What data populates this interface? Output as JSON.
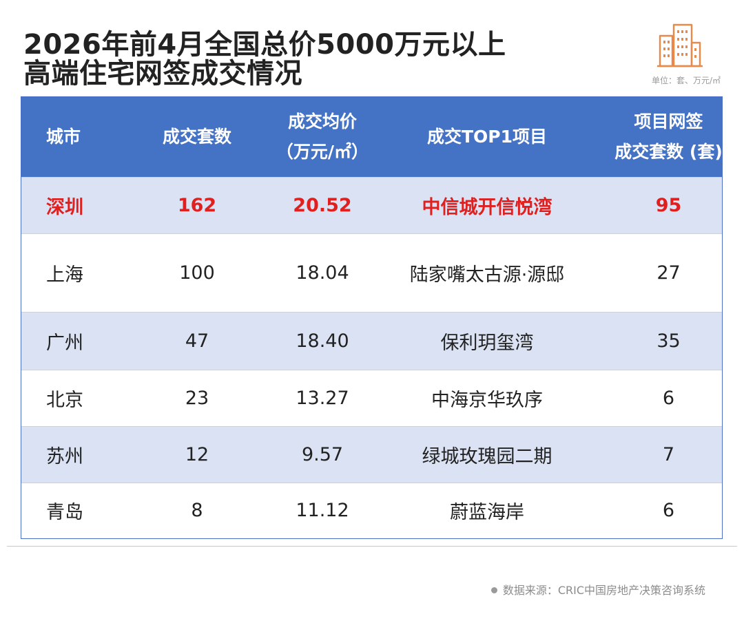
{
  "title_line1": "2026年前4月全国总价5000万元以上",
  "title_line2": "高端住宅网签成交情况",
  "unit_text": "单位：套、万元/㎡",
  "logo_icon": "buildings-icon",
  "accent_color": "#4472c4",
  "highlight_color": "#e0201f",
  "source_text": "数据来源：CRIC中国房地产决策咨询系统",
  "chart_data": {
    "type": "table",
    "columns": [
      {
        "line1": "城市",
        "line2": ""
      },
      {
        "line1": "成交套数",
        "line2": ""
      },
      {
        "line1": "成交均价",
        "line2": "（万元/㎡）"
      },
      {
        "line1": "成交TOP1项目",
        "line2": ""
      },
      {
        "line1": "项目网签",
        "line2": "成交套数 (套)"
      }
    ],
    "rows": [
      {
        "city": "深圳",
        "units": "162",
        "avg_price": "20.52",
        "top_project": "中信城开信悦湾",
        "project_units": "95",
        "highlight": true
      },
      {
        "city": "上海",
        "units": "100",
        "avg_price": "18.04",
        "top_project": "陆家嘴太古源·源邸",
        "project_units": "27",
        "highlight": false
      },
      {
        "city": "广州",
        "units": "47",
        "avg_price": "18.40",
        "top_project": "保利玥玺湾",
        "project_units": "35",
        "highlight": false
      },
      {
        "city": "北京",
        "units": "23",
        "avg_price": "13.27",
        "top_project": "中海京华玖序",
        "project_units": "6",
        "highlight": false
      },
      {
        "city": "苏州",
        "units": "12",
        "avg_price": "9.57",
        "top_project": "绿城玫瑰园二期",
        "project_units": "7",
        "highlight": false
      },
      {
        "city": "青岛",
        "units": "8",
        "avg_price": "11.12",
        "top_project": "蔚蓝海岸",
        "project_units": "6",
        "highlight": false
      }
    ]
  }
}
